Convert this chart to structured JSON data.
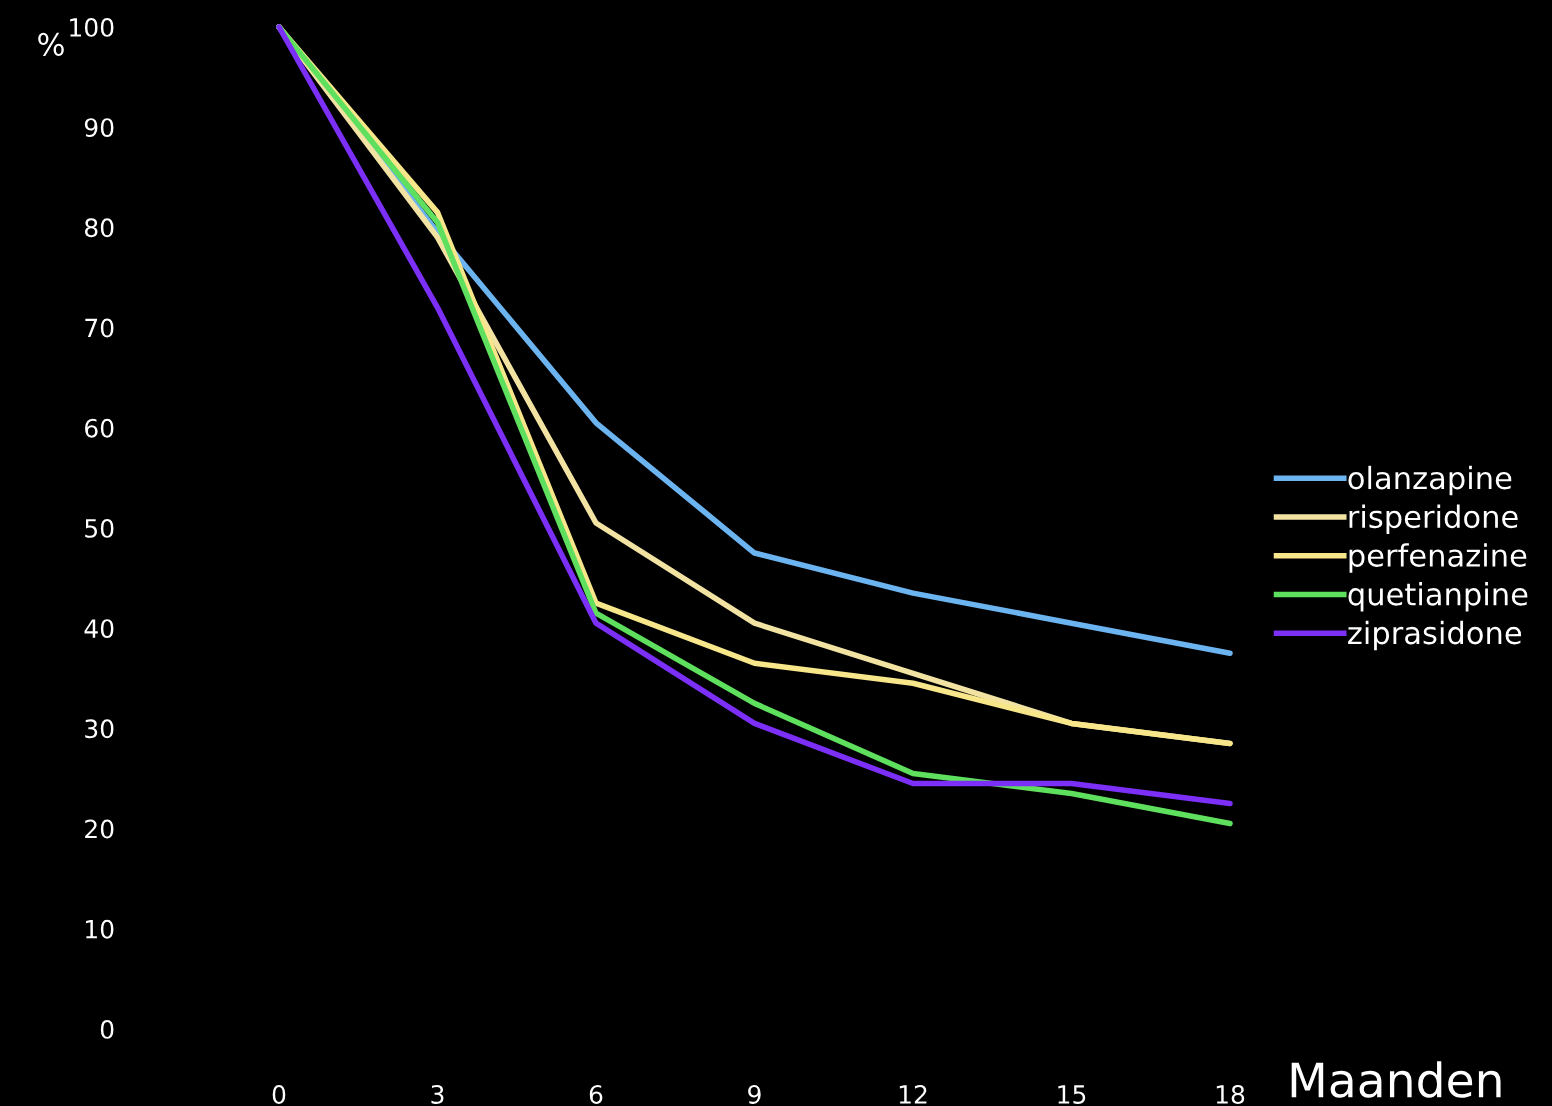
{
  "chart_data": {
    "type": "line",
    "xlabel": "Maanden",
    "ylabel": "%",
    "x": [
      0,
      3,
      6,
      9,
      12,
      15,
      18
    ],
    "xlim": [
      0,
      18
    ],
    "xticks": [
      0,
      3,
      6,
      9,
      12,
      15,
      18
    ],
    "ylim": [
      0,
      100
    ],
    "yticks": [
      0,
      10,
      20,
      30,
      40,
      50,
      60,
      70,
      80,
      90,
      100
    ],
    "grid": false,
    "legend": "right",
    "marker": "none",
    "line_style": "solid",
    "series": [
      {
        "name": "olanzapine",
        "color": "#6cb4f0",
        "values": [
          100,
          79.5,
          60.5,
          47.5,
          43.5,
          40.5,
          37.5
        ]
      },
      {
        "name": "risperidone",
        "color": "#f3e3a3",
        "values": [
          100,
          79,
          50.5,
          40.5,
          35.5,
          30.5,
          28.5
        ]
      },
      {
        "name": "perfenazine",
        "color": "#f7e68a",
        "values": [
          100,
          81.5,
          42.5,
          36.5,
          34.5,
          30.5,
          28.5
        ]
      },
      {
        "name": "quetianpine",
        "color": "#5ee05e",
        "values": [
          100,
          80.5,
          41.5,
          32.5,
          25.5,
          23.5,
          20.5
        ]
      },
      {
        "name": "ziprasidone",
        "color": "#7b2ff7",
        "values": [
          100,
          72,
          40.5,
          30.5,
          24.5,
          24.5,
          22.5
        ]
      }
    ]
  }
}
